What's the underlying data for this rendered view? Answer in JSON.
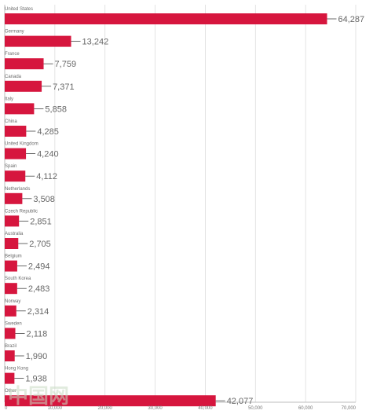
{
  "chart_data": {
    "type": "bar",
    "orientation": "horizontal",
    "title": "",
    "xlabel": "",
    "ylabel": "",
    "xlim": [
      0,
      70000
    ],
    "x_ticks": [
      "0",
      "10,000",
      "20,000",
      "30,000",
      "40,000",
      "50,000",
      "60,000",
      "70,000"
    ],
    "grid": true,
    "bar_color": "#d6163e",
    "categories": [
      "United States",
      "Germany",
      "France",
      "Canada",
      "Italy",
      "China",
      "United Kingdom",
      "Spain",
      "Netherlands",
      "Czech Republic",
      "Australia",
      "Belgium",
      "South Korea",
      "Norway",
      "Sweden",
      "Brazil",
      "Hong Kong",
      "Other"
    ],
    "values": [
      64287,
      13242,
      7759,
      7371,
      5858,
      4285,
      4240,
      4112,
      3508,
      2851,
      2705,
      2494,
      2483,
      2314,
      2118,
      1990,
      1938,
      42077
    ],
    "value_labels": [
      "64,287",
      "13,242",
      "7,759",
      "7,371",
      "5,858",
      "4,285",
      "4,240",
      "4,112",
      "3,508",
      "2,851",
      "2,705",
      "2,494",
      "2,483",
      "2,314",
      "2,118",
      "1,990",
      "1,938",
      "42,077"
    ]
  },
  "watermark": "中国网"
}
